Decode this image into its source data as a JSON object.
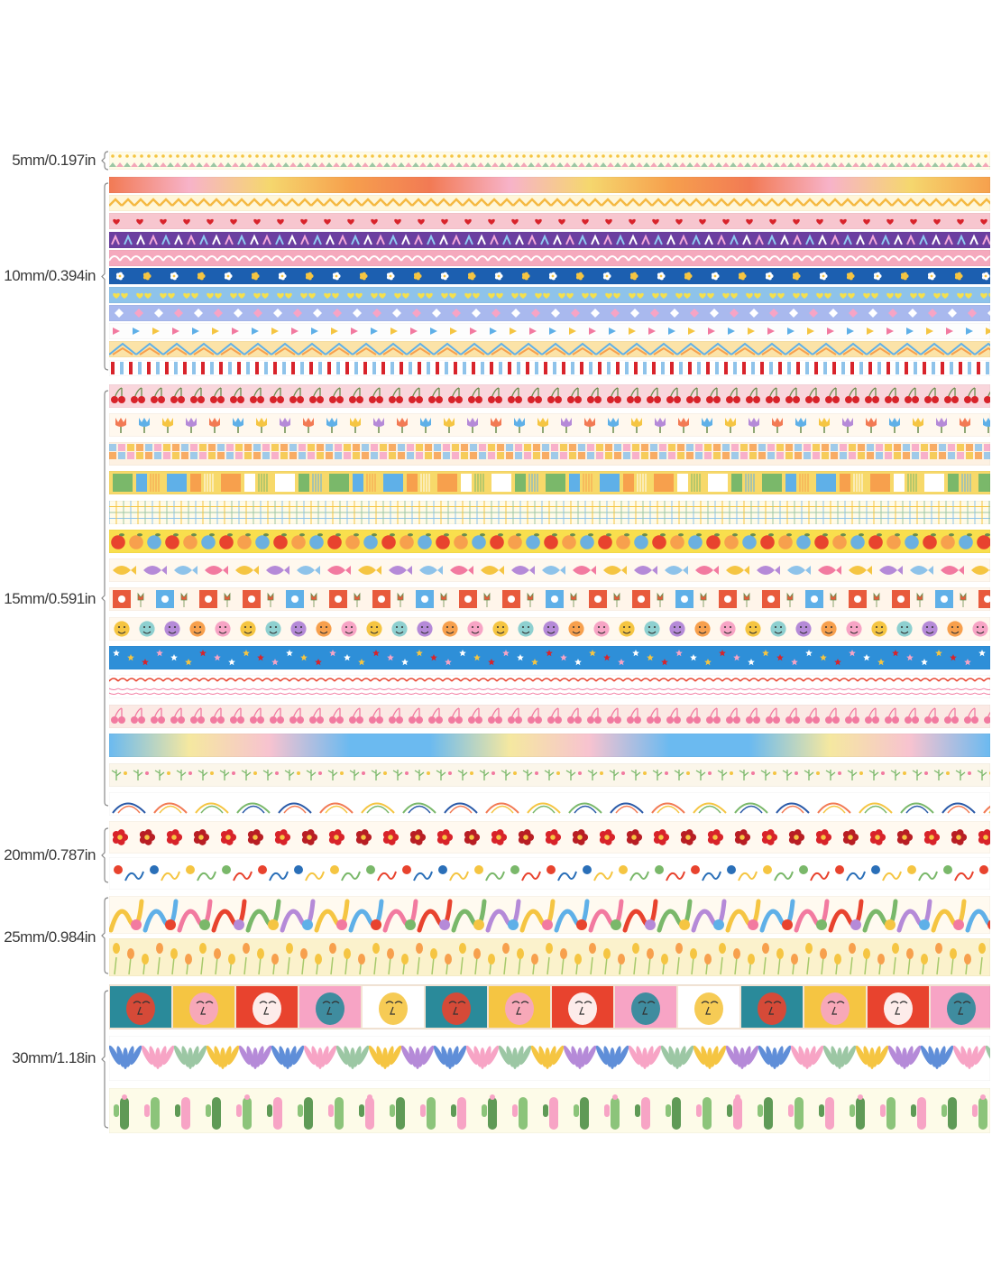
{
  "groups": [
    {
      "label": "5mm/0.197in",
      "strips": [
        {
          "name": "dots-and-triangles",
          "bg": "#fffbe6",
          "colors": [
            "#f5c542",
            "#9cc7a4",
            "#f4a6b8"
          ],
          "motif": "dots"
        }
      ]
    },
    {
      "label": "10mm/0.394in",
      "strips": [
        {
          "name": "sunset-gradient",
          "bg": "#f28b6d",
          "colors": [
            "#f27a54",
            "#f7b3c9",
            "#f5d76e",
            "#f6a04d"
          ],
          "motif": "gradient"
        },
        {
          "name": "yellow-wave",
          "bg": "#fff6d8",
          "colors": [
            "#f5b942"
          ],
          "motif": "zigzag"
        },
        {
          "name": "red-hearts",
          "bg": "#f7c6cf",
          "colors": [
            "#d8232a"
          ],
          "motif": "hearts"
        },
        {
          "name": "purple-ribbons",
          "bg": "#6b3fa0",
          "colors": [
            "#f2a7d8",
            "#8ec9f0",
            "#ffffff"
          ],
          "motif": "ribbons"
        },
        {
          "name": "pink-loops",
          "bg": "#f5a9bd",
          "colors": [
            "#ffffff"
          ],
          "motif": "loops"
        },
        {
          "name": "blue-daisies",
          "bg": "#1c5fb0",
          "colors": [
            "#ffffff",
            "#f5c542"
          ],
          "motif": "flowers"
        },
        {
          "name": "sky-yellow-hearts",
          "bg": "#8ec3ea",
          "colors": [
            "#f5e04d",
            "#ffffff"
          ],
          "motif": "hearts"
        },
        {
          "name": "lavender-diamonds",
          "bg": "#a9b9ee",
          "colors": [
            "#ffffff",
            "#f7a4c5"
          ],
          "motif": "diamonds"
        },
        {
          "name": "white-arrows",
          "bg": "#fdfdfd",
          "colors": [
            "#f27aa0",
            "#5fb0e8",
            "#f5c542"
          ],
          "motif": "arrows"
        },
        {
          "name": "chevron-pastel",
          "bg": "#fbe3a8",
          "colors": [
            "#5fb0e8",
            "#f7a04d",
            "#ffffff"
          ],
          "motif": "chevron"
        },
        {
          "name": "red-blue-stripes",
          "bg": "#ffffff",
          "colors": [
            "#d8232a",
            "#8ec3ea"
          ],
          "motif": "stripes"
        }
      ]
    },
    {
      "label": "15mm/0.591in",
      "strips": [
        {
          "name": "cherries-pink",
          "bg": "#f9d6dc",
          "colors": [
            "#d8232a",
            "#6b8e4e"
          ],
          "motif": "cherries"
        },
        {
          "name": "tulips-row",
          "bg": "#fff8ee",
          "colors": [
            "#f27a54",
            "#5fb0e8",
            "#f5c542",
            "#b58ad8"
          ],
          "motif": "tulips"
        },
        {
          "name": "pastel-checks",
          "bg": "#fdf1e2",
          "colors": [
            "#8ec3ea",
            "#f7a4c5",
            "#f5c542",
            "#f7a04d"
          ],
          "motif": "checks"
        },
        {
          "name": "yellow-blocks",
          "bg": "#f7d96a",
          "colors": [
            "#7ab86a",
            "#5fb0e8",
            "#f7a04d",
            "#ffffff"
          ],
          "motif": "blocks"
        },
        {
          "name": "plaid-grid",
          "bg": "#fffbe8",
          "colors": [
            "#8ec3ea",
            "#f5c542",
            "#9cc7a4"
          ],
          "motif": "grid"
        },
        {
          "name": "citrus-fruits",
          "bg": "#f9df4d",
          "colors": [
            "#e8432e",
            "#f7a04d",
            "#6bb0e0"
          ],
          "motif": "fruits"
        },
        {
          "name": "tropical-fish",
          "bg": "#fff8ee",
          "colors": [
            "#f5c542",
            "#b58ad8",
            "#8ec3ea",
            "#f27aa0"
          ],
          "motif": "fish"
        },
        {
          "name": "flower-tiles",
          "bg": "#fff5ea",
          "colors": [
            "#e85a3c",
            "#5fb0e8",
            "#ffffff"
          ],
          "motif": "tiles"
        },
        {
          "name": "smiley-faces",
          "bg": "#fff8ee",
          "colors": [
            "#f5c542",
            "#8ed0d0",
            "#b58ad8",
            "#f7a04d",
            "#f7a4c5"
          ],
          "motif": "faces"
        },
        {
          "name": "blue-stars",
          "bg": "#2e8fd8",
          "colors": [
            "#ffffff",
            "#f5c542",
            "#d8232a",
            "#f7a4c5"
          ],
          "motif": "stars"
        },
        {
          "name": "red-scallop-lines",
          "bg": "#ffffff",
          "colors": [
            "#e8432e",
            "#f27aa0"
          ],
          "motif": "scallop"
        },
        {
          "name": "pink-cherries",
          "bg": "#fbe9e4",
          "colors": [
            "#f27aa0"
          ],
          "motif": "cherries"
        },
        {
          "name": "blue-yellow-gradient",
          "bg": "#8ec3ea",
          "colors": [
            "#6bbaf0",
            "#f5e8a0",
            "#f7c3d0",
            "#6bbaf0"
          ],
          "motif": "gradient"
        },
        {
          "name": "tiny-herbs",
          "bg": "#fbf6ea",
          "colors": [
            "#7ab86a",
            "#f5c542",
            "#f27aa0"
          ],
          "motif": "sprigs"
        },
        {
          "name": "abstract-lines",
          "bg": "#ffffff",
          "colors": [
            "#2a5aa8",
            "#f27a54",
            "#f5c542",
            "#7ab86a"
          ],
          "motif": "abstract"
        }
      ]
    },
    {
      "label": "20mm/0.787in",
      "strips": [
        {
          "name": "red-flowers",
          "bg": "#fff9f0",
          "colors": [
            "#d8232a",
            "#b81e24",
            "#f5c542"
          ],
          "motif": "flowers"
        },
        {
          "name": "playful-doodles",
          "bg": "#ffffff",
          "colors": [
            "#e8432e",
            "#2a6fb8",
            "#f5c542",
            "#7ab86a"
          ],
          "motif": "doodles"
        }
      ]
    },
    {
      "label": "25mm/0.984in",
      "strips": [
        {
          "name": "colorful-shapes",
          "bg": "#fffaf0",
          "colors": [
            "#f5c542",
            "#5fb0e8",
            "#f27aa0",
            "#e8432e",
            "#7ab86a",
            "#b58ad8"
          ],
          "motif": "shapes"
        },
        {
          "name": "yellow-tulip-field",
          "bg": "#fbf2cc",
          "colors": [
            "#f5c542",
            "#a6c96a",
            "#f7a04d"
          ],
          "motif": "field"
        }
      ]
    },
    {
      "label": "30mm/1.18in",
      "strips": [
        {
          "name": "abstract-faces",
          "bg": "#f3e4d4",
          "colors": [
            "#2a8a9a",
            "#f5c542",
            "#e8432e",
            "#f7a4c5",
            "#ffffff"
          ],
          "motif": "portraits"
        },
        {
          "name": "botanical-cutouts",
          "bg": "#ffffff",
          "colors": [
            "#5f8ed8",
            "#f7a4c5",
            "#9cc7a4",
            "#f5c542",
            "#b58ad8"
          ],
          "motif": "leaves"
        },
        {
          "name": "green-cacti",
          "bg": "#fdfbe8",
          "colors": [
            "#5f9a56",
            "#8cc47a",
            "#f7a4c5"
          ],
          "motif": "cacti"
        }
      ]
    }
  ]
}
